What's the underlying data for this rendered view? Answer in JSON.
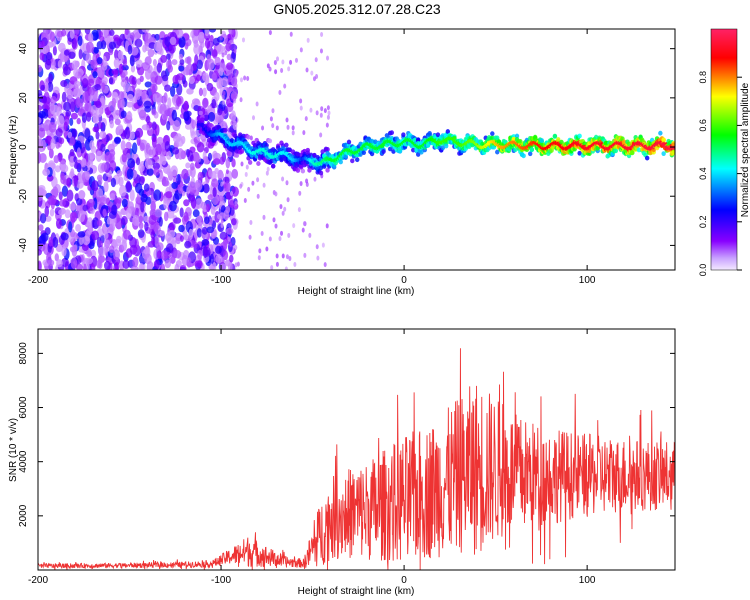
{
  "title": "GN05.2025.312.07.28.C23",
  "chart_data": [
    {
      "type": "heatmap",
      "xlabel": "Height of straight line (km)",
      "ylabel": "Frequency (Hz)",
      "xlim": [
        -200,
        148
      ],
      "ylim": [
        -50,
        48
      ],
      "xticks": [
        -200,
        -100,
        0,
        100
      ],
      "yticks": [
        -40,
        -20,
        0,
        20,
        40
      ],
      "xtick_labels": [
        "-200",
        "-100",
        "0",
        "100"
      ],
      "ytick_labels": [
        "-40",
        "-20",
        "0",
        "20",
        "40"
      ],
      "colorbar": {
        "label": "Normalized spectral amplitude",
        "range": [
          0,
          1
        ],
        "ticks": [
          0,
          0.2,
          0.4,
          0.6,
          0.8
        ],
        "tick_labels": [
          "0.0",
          "0.2",
          "0.4",
          "0.6",
          "0.8"
        ],
        "colormap": [
          "#f2e6ff",
          "#8800ff",
          "#0000ff",
          "#00ffff",
          "#00ff00",
          "#ffff00",
          "#ff0000",
          "#ff2266"
        ]
      },
      "ridge": {
        "x": [
          -110,
          -100,
          -90,
          -80,
          -70,
          -60,
          -55,
          -50,
          -45,
          -40,
          -30,
          -20,
          -10,
          0,
          10,
          20,
          30,
          40,
          50,
          75,
          100,
          125,
          148
        ],
        "y": [
          8,
          4,
          1,
          -2,
          -3,
          -4,
          -6,
          -5,
          -7,
          -5,
          -2,
          0,
          1,
          2,
          1,
          3,
          2,
          1,
          1,
          0.5,
          0.5,
          0.5,
          0.5
        ],
        "amplitude": [
          0.25,
          0.4,
          0.4,
          0.45,
          0.45,
          0.4,
          0.3,
          0.45,
          0.5,
          0.55,
          0.55,
          0.55,
          0.55,
          0.55,
          0.55,
          0.6,
          0.6,
          0.65,
          0.75,
          0.85,
          0.9,
          0.92,
          0.95
        ]
      },
      "noise_region": {
        "x_range": [
          -200,
          -100
        ],
        "amplitude": [
          0.05,
          0.3
        ]
      }
    },
    {
      "type": "line",
      "xlabel": "Height of straight line (km)",
      "ylabel": "SNR (10 * v/v)",
      "xlim": [
        -200,
        148
      ],
      "ylim": [
        0,
        8900
      ],
      "xticks": [
        -200,
        -100,
        0,
        100
      ],
      "yticks": [
        2000,
        4000,
        6000,
        8000
      ],
      "xtick_labels": [
        "-200",
        "-100",
        "0",
        "100"
      ],
      "ytick_labels": [
        "2000",
        "4000",
        "6000",
        "8000"
      ],
      "series": [
        {
          "name": "SNR",
          "color": "#ee3333",
          "envelope_x": [
            -200,
            -150,
            -120,
            -105,
            -95,
            -85,
            -75,
            -65,
            -55,
            -50,
            -45,
            -40,
            -30,
            -20,
            -10,
            0,
            10,
            20,
            30,
            40,
            50,
            60,
            75,
            100,
            125,
            148
          ],
          "envelope_mean": [
            150,
            170,
            200,
            230,
            500,
            700,
            500,
            300,
            250,
            800,
            1400,
            1900,
            2100,
            2200,
            2400,
            2600,
            2800,
            3100,
            3500,
            3800,
            3700,
            3600,
            3500,
            3500,
            3500,
            3500
          ],
          "envelope_amp": [
            100,
            110,
            130,
            150,
            350,
            700,
            450,
            250,
            200,
            900,
            1500,
            1800,
            2000,
            2200,
            2500,
            2800,
            2900,
            3100,
            3400,
            3900,
            3200,
            2600,
            2200,
            1800,
            1600,
            1500
          ]
        }
      ]
    }
  ]
}
